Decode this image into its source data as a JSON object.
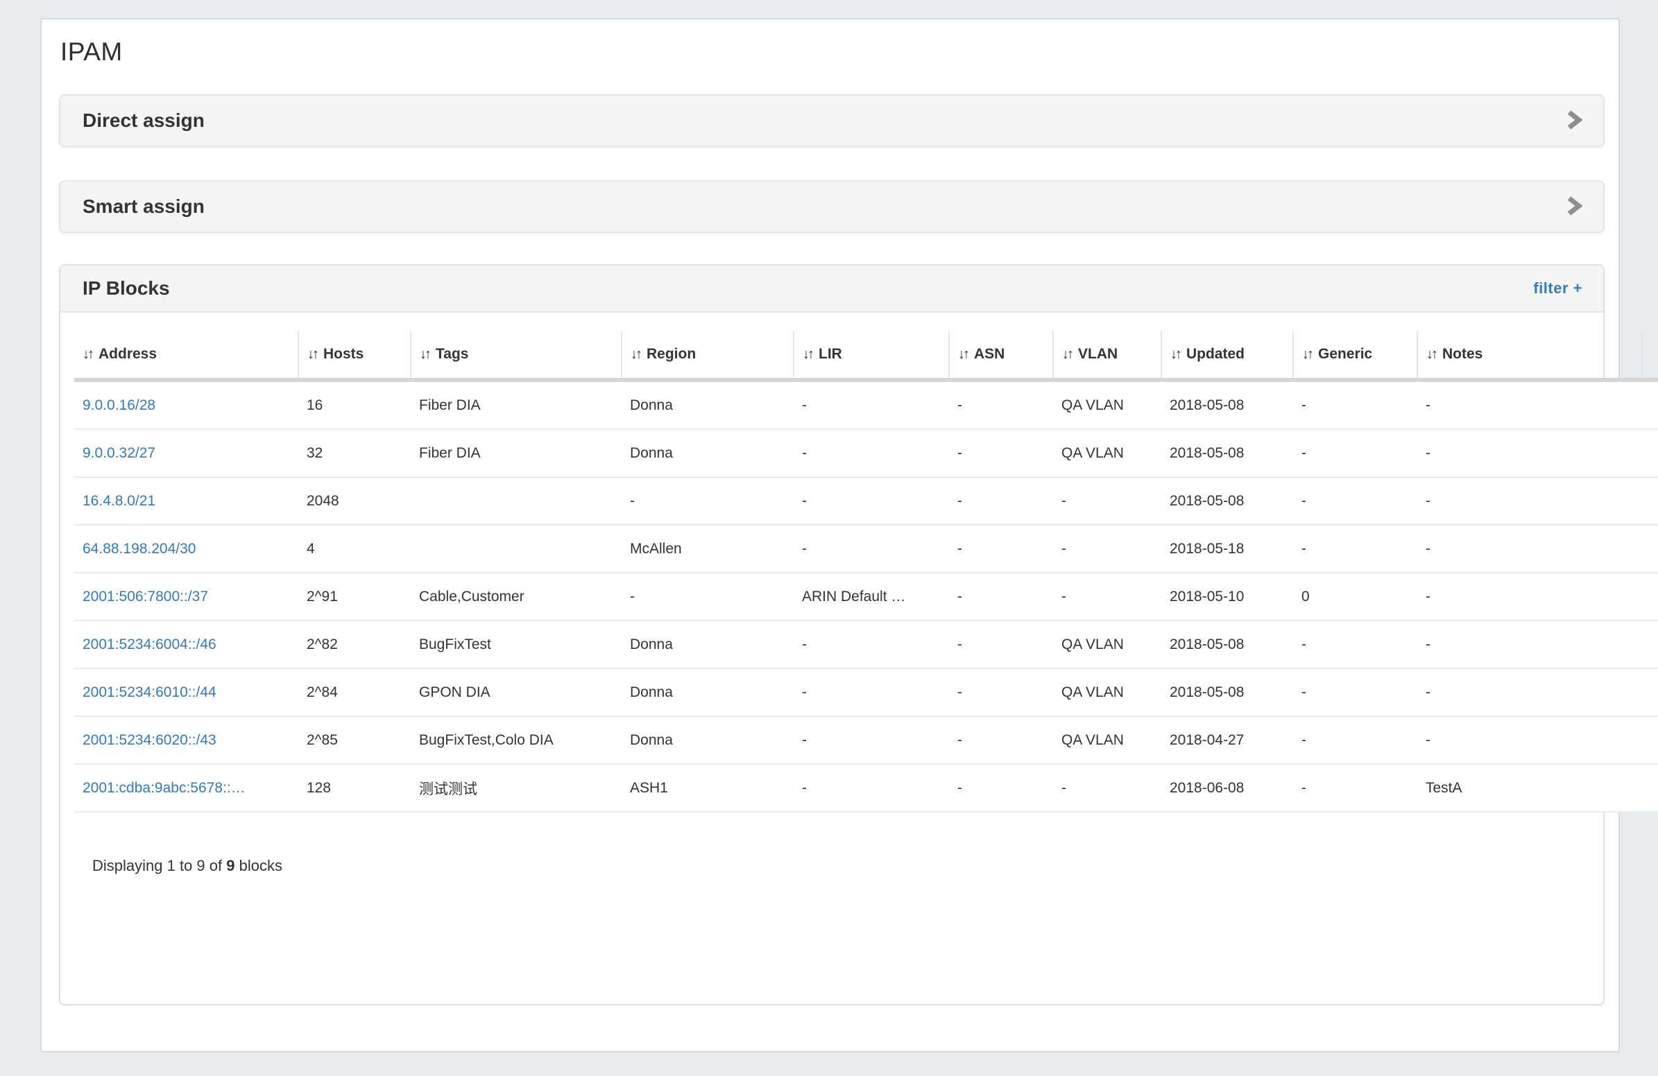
{
  "page": {
    "title": "IPAM"
  },
  "panels": {
    "direct_assign": {
      "title": "Direct assign"
    },
    "smart_assign": {
      "title": "Smart assign"
    }
  },
  "ip_blocks": {
    "title": "IP Blocks",
    "filter_label": "filter +",
    "table": {
      "sort_icon": "↓↑",
      "columns": [
        {
          "key": "address",
          "label": "Address"
        },
        {
          "key": "hosts",
          "label": "Hosts"
        },
        {
          "key": "tags",
          "label": "Tags"
        },
        {
          "key": "region",
          "label": "Region"
        },
        {
          "key": "lir",
          "label": "LIR"
        },
        {
          "key": "asn",
          "label": "ASN"
        },
        {
          "key": "vlan",
          "label": "VLAN"
        },
        {
          "key": "updated",
          "label": "Updated"
        },
        {
          "key": "generic",
          "label": "Generic"
        },
        {
          "key": "notes",
          "label": "Notes"
        }
      ],
      "rows": [
        {
          "address": "9.0.0.16/28",
          "hosts": "16",
          "tags": "Fiber DIA",
          "region": "Donna",
          "lir": "-",
          "asn": "-",
          "vlan": "QA VLAN",
          "updated": "2018-05-08",
          "generic": "-",
          "notes": "-"
        },
        {
          "address": "9.0.0.32/27",
          "hosts": "32",
          "tags": "Fiber DIA",
          "region": "Donna",
          "lir": "-",
          "asn": "-",
          "vlan": "QA VLAN",
          "updated": "2018-05-08",
          "generic": "-",
          "notes": "-"
        },
        {
          "address": "16.4.8.0/21",
          "hosts": "2048",
          "tags": "",
          "region": "-",
          "lir": "-",
          "asn": "-",
          "vlan": "-",
          "updated": "2018-05-08",
          "generic": "-",
          "notes": "-"
        },
        {
          "address": "64.88.198.204/30",
          "hosts": "4",
          "tags": "",
          "region": "McAllen",
          "lir": "-",
          "asn": "-",
          "vlan": "-",
          "updated": "2018-05-18",
          "generic": "-",
          "notes": "-"
        },
        {
          "address": "2001:506:7800::/37",
          "hosts": "2^91",
          "tags": "Cable,Customer",
          "region": "-",
          "lir": "ARIN Default …",
          "asn": "-",
          "vlan": "-",
          "updated": "2018-05-10",
          "generic": "0",
          "notes": "-"
        },
        {
          "address": "2001:5234:6004::/46",
          "hosts": "2^82",
          "tags": "BugFixTest",
          "region": "Donna",
          "lir": "-",
          "asn": "-",
          "vlan": "QA VLAN",
          "updated": "2018-05-08",
          "generic": "-",
          "notes": "-"
        },
        {
          "address": "2001:5234:6010::/44",
          "hosts": "2^84",
          "tags": "GPON DIA",
          "region": "Donna",
          "lir": "-",
          "asn": "-",
          "vlan": "QA VLAN",
          "updated": "2018-05-08",
          "generic": "-",
          "notes": "-"
        },
        {
          "address": "2001:5234:6020::/43",
          "hosts": "2^85",
          "tags": "BugFixTest,Colo DIA",
          "region": "Donna",
          "lir": "-",
          "asn": "-",
          "vlan": "QA VLAN",
          "updated": "2018-04-27",
          "generic": "-",
          "notes": "-"
        },
        {
          "address": "2001:cdba:9abc:5678::…",
          "hosts": "128",
          "tags": "测试测试",
          "region": "ASH1",
          "lir": "-",
          "asn": "-",
          "vlan": "-",
          "updated": "2018-06-08",
          "generic": "-",
          "notes": "TestA"
        }
      ],
      "footer": {
        "prefix": "Displaying 1 to 9 of ",
        "total": "9",
        "suffix": " blocks"
      }
    }
  },
  "colors": {
    "link": "#337ab7",
    "gear": "#2e75b6",
    "chevron": "#8e8e8e",
    "panel_bg": "#f5f5f5",
    "page_bg": "#e9ecef"
  }
}
